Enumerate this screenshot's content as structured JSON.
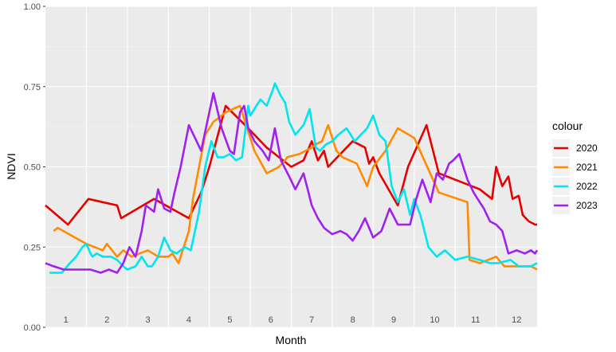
{
  "chart_data": {
    "type": "line",
    "xlabel": "Month",
    "ylabel": "NDVI",
    "ylim": [
      0,
      1
    ],
    "xlim": [
      0,
      12
    ],
    "y_ticks": [
      "0.00",
      "0.25",
      "0.50",
      "0.75",
      "1.00"
    ],
    "y_tick_values": [
      0,
      0.25,
      0.5,
      0.75,
      1
    ],
    "month_labels": [
      "1",
      "2",
      "3",
      "4",
      "5",
      "6",
      "7",
      "8",
      "9",
      "10",
      "11",
      "12"
    ],
    "grid": true,
    "legend_title": "colour",
    "legend_position": "right",
    "series": [
      {
        "name": "2020",
        "color": "#e60000",
        "x": [
          0.0,
          0.55,
          1.05,
          1.75,
          1.85,
          2.65,
          3.5,
          3.8,
          4.0,
          4.4,
          4.95,
          5.4,
          5.9,
          6.0,
          6.3,
          6.5,
          6.65,
          6.8,
          6.9,
          7.05,
          7.5,
          7.8,
          7.9,
          8.0,
          8.15,
          8.6,
          8.85,
          9.3,
          9.6,
          10.6,
          10.9,
          11.0,
          11.15,
          11.3,
          11.4,
          11.55,
          11.65,
          11.8,
          11.95,
          12.0
        ],
        "y": [
          0.38,
          0.32,
          0.4,
          0.38,
          0.34,
          0.4,
          0.34,
          0.42,
          0.5,
          0.69,
          0.62,
          0.56,
          0.51,
          0.5,
          0.52,
          0.58,
          0.52,
          0.55,
          0.5,
          0.52,
          0.58,
          0.56,
          0.51,
          0.53,
          0.48,
          0.38,
          0.5,
          0.63,
          0.48,
          0.43,
          0.4,
          0.5,
          0.44,
          0.47,
          0.4,
          0.41,
          0.35,
          0.33,
          0.32,
          0.32
        ]
      },
      {
        "name": "2021",
        "color": "#ff8c00",
        "x": [
          0.2,
          0.3,
          1.0,
          1.2,
          1.4,
          1.5,
          1.75,
          1.9,
          2.1,
          2.3,
          2.5,
          2.75,
          3.0,
          3.1,
          3.25,
          3.35,
          3.5,
          3.6,
          3.75,
          3.9,
          4.1,
          4.4,
          4.75,
          4.9,
          5.1,
          5.4,
          5.7,
          5.85,
          5.9,
          6.2,
          6.5,
          6.6,
          6.75,
          6.9,
          7.1,
          7.25,
          7.6,
          7.85,
          8.0,
          8.3,
          8.6,
          9.0,
          9.6,
          10.3,
          10.35,
          10.6,
          11.0,
          11.2,
          11.6,
          11.85,
          12.0
        ],
        "y": [
          0.3,
          0.31,
          0.26,
          0.25,
          0.24,
          0.26,
          0.22,
          0.24,
          0.22,
          0.23,
          0.24,
          0.22,
          0.22,
          0.23,
          0.2,
          0.24,
          0.3,
          0.4,
          0.5,
          0.6,
          0.64,
          0.67,
          0.69,
          0.63,
          0.55,
          0.48,
          0.5,
          0.52,
          0.53,
          0.54,
          0.56,
          0.57,
          0.58,
          0.63,
          0.55,
          0.53,
          0.51,
          0.44,
          0.5,
          0.55,
          0.62,
          0.59,
          0.42,
          0.39,
          0.21,
          0.2,
          0.22,
          0.19,
          0.19,
          0.19,
          0.18
        ]
      },
      {
        "name": "2022",
        "color": "#00e5ee",
        "x": [
          0.1,
          0.4,
          0.6,
          0.75,
          0.9,
          1.0,
          1.1,
          1.15,
          1.25,
          1.4,
          1.5,
          1.6,
          1.75,
          1.9,
          2.0,
          2.2,
          2.35,
          2.5,
          2.6,
          2.75,
          2.9,
          3.05,
          3.2,
          3.4,
          3.55,
          3.75,
          3.9,
          4.05,
          4.2,
          4.35,
          4.5,
          4.65,
          4.8,
          4.95,
          5.0,
          5.1,
          5.25,
          5.4,
          5.55,
          5.6,
          5.75,
          5.85,
          5.95,
          6.1,
          6.3,
          6.45,
          6.6,
          6.7,
          6.85,
          7.0,
          7.15,
          7.35,
          7.55,
          7.7,
          7.85,
          8.0,
          8.15,
          8.3,
          8.45,
          8.6,
          8.75,
          8.9,
          9.0,
          9.15,
          9.35,
          9.55,
          9.75,
          10.0,
          10.3,
          10.6,
          10.85,
          11.05,
          11.35,
          11.55,
          11.85,
          12.0
        ],
        "y": [
          0.17,
          0.17,
          0.2,
          0.22,
          0.25,
          0.26,
          0.23,
          0.22,
          0.23,
          0.22,
          0.22,
          0.22,
          0.21,
          0.19,
          0.18,
          0.19,
          0.22,
          0.19,
          0.19,
          0.22,
          0.28,
          0.24,
          0.23,
          0.25,
          0.24,
          0.36,
          0.5,
          0.58,
          0.53,
          0.53,
          0.54,
          0.52,
          0.53,
          0.69,
          0.66,
          0.68,
          0.71,
          0.69,
          0.74,
          0.76,
          0.72,
          0.7,
          0.64,
          0.6,
          0.63,
          0.68,
          0.56,
          0.55,
          0.57,
          0.58,
          0.6,
          0.62,
          0.58,
          0.6,
          0.62,
          0.66,
          0.6,
          0.58,
          0.44,
          0.39,
          0.43,
          0.35,
          0.4,
          0.35,
          0.25,
          0.22,
          0.24,
          0.21,
          0.22,
          0.21,
          0.2,
          0.2,
          0.21,
          0.19,
          0.19,
          0.2
        ]
      },
      {
        "name": "2023",
        "color": "#a020f0",
        "x": [
          0.0,
          0.2,
          0.45,
          0.7,
          0.9,
          1.1,
          1.35,
          1.55,
          1.75,
          1.9,
          2.05,
          2.2,
          2.35,
          2.45,
          2.65,
          2.75,
          2.9,
          3.05,
          3.15,
          3.3,
          3.5,
          3.8,
          4.1,
          4.3,
          4.5,
          4.6,
          4.75,
          4.85,
          4.95,
          5.1,
          5.3,
          5.45,
          5.6,
          5.75,
          5.95,
          6.1,
          6.3,
          6.4,
          6.5,
          6.65,
          6.8,
          7.0,
          7.2,
          7.35,
          7.5,
          7.65,
          7.8,
          8.0,
          8.2,
          8.4,
          8.6,
          8.75,
          8.9,
          9.05,
          9.2,
          9.4,
          9.55,
          9.7,
          9.85,
          9.95,
          10.1,
          10.3,
          10.45,
          10.55,
          10.7,
          10.85,
          11.0,
          11.15,
          11.3,
          11.5,
          11.7,
          11.85,
          11.95,
          12.0
        ],
        "y": [
          0.2,
          0.19,
          0.18,
          0.18,
          0.18,
          0.18,
          0.17,
          0.18,
          0.17,
          0.2,
          0.25,
          0.22,
          0.3,
          0.38,
          0.36,
          0.43,
          0.37,
          0.36,
          0.42,
          0.5,
          0.63,
          0.55,
          0.73,
          0.62,
          0.55,
          0.54,
          0.67,
          0.69,
          0.62,
          0.58,
          0.55,
          0.52,
          0.62,
          0.52,
          0.47,
          0.43,
          0.48,
          0.43,
          0.38,
          0.34,
          0.31,
          0.29,
          0.3,
          0.29,
          0.27,
          0.3,
          0.34,
          0.28,
          0.3,
          0.37,
          0.32,
          0.32,
          0.32,
          0.4,
          0.46,
          0.39,
          0.48,
          0.46,
          0.51,
          0.52,
          0.54,
          0.46,
          0.42,
          0.4,
          0.37,
          0.33,
          0.32,
          0.3,
          0.23,
          0.24,
          0.23,
          0.24,
          0.23,
          0.24
        ]
      }
    ]
  }
}
